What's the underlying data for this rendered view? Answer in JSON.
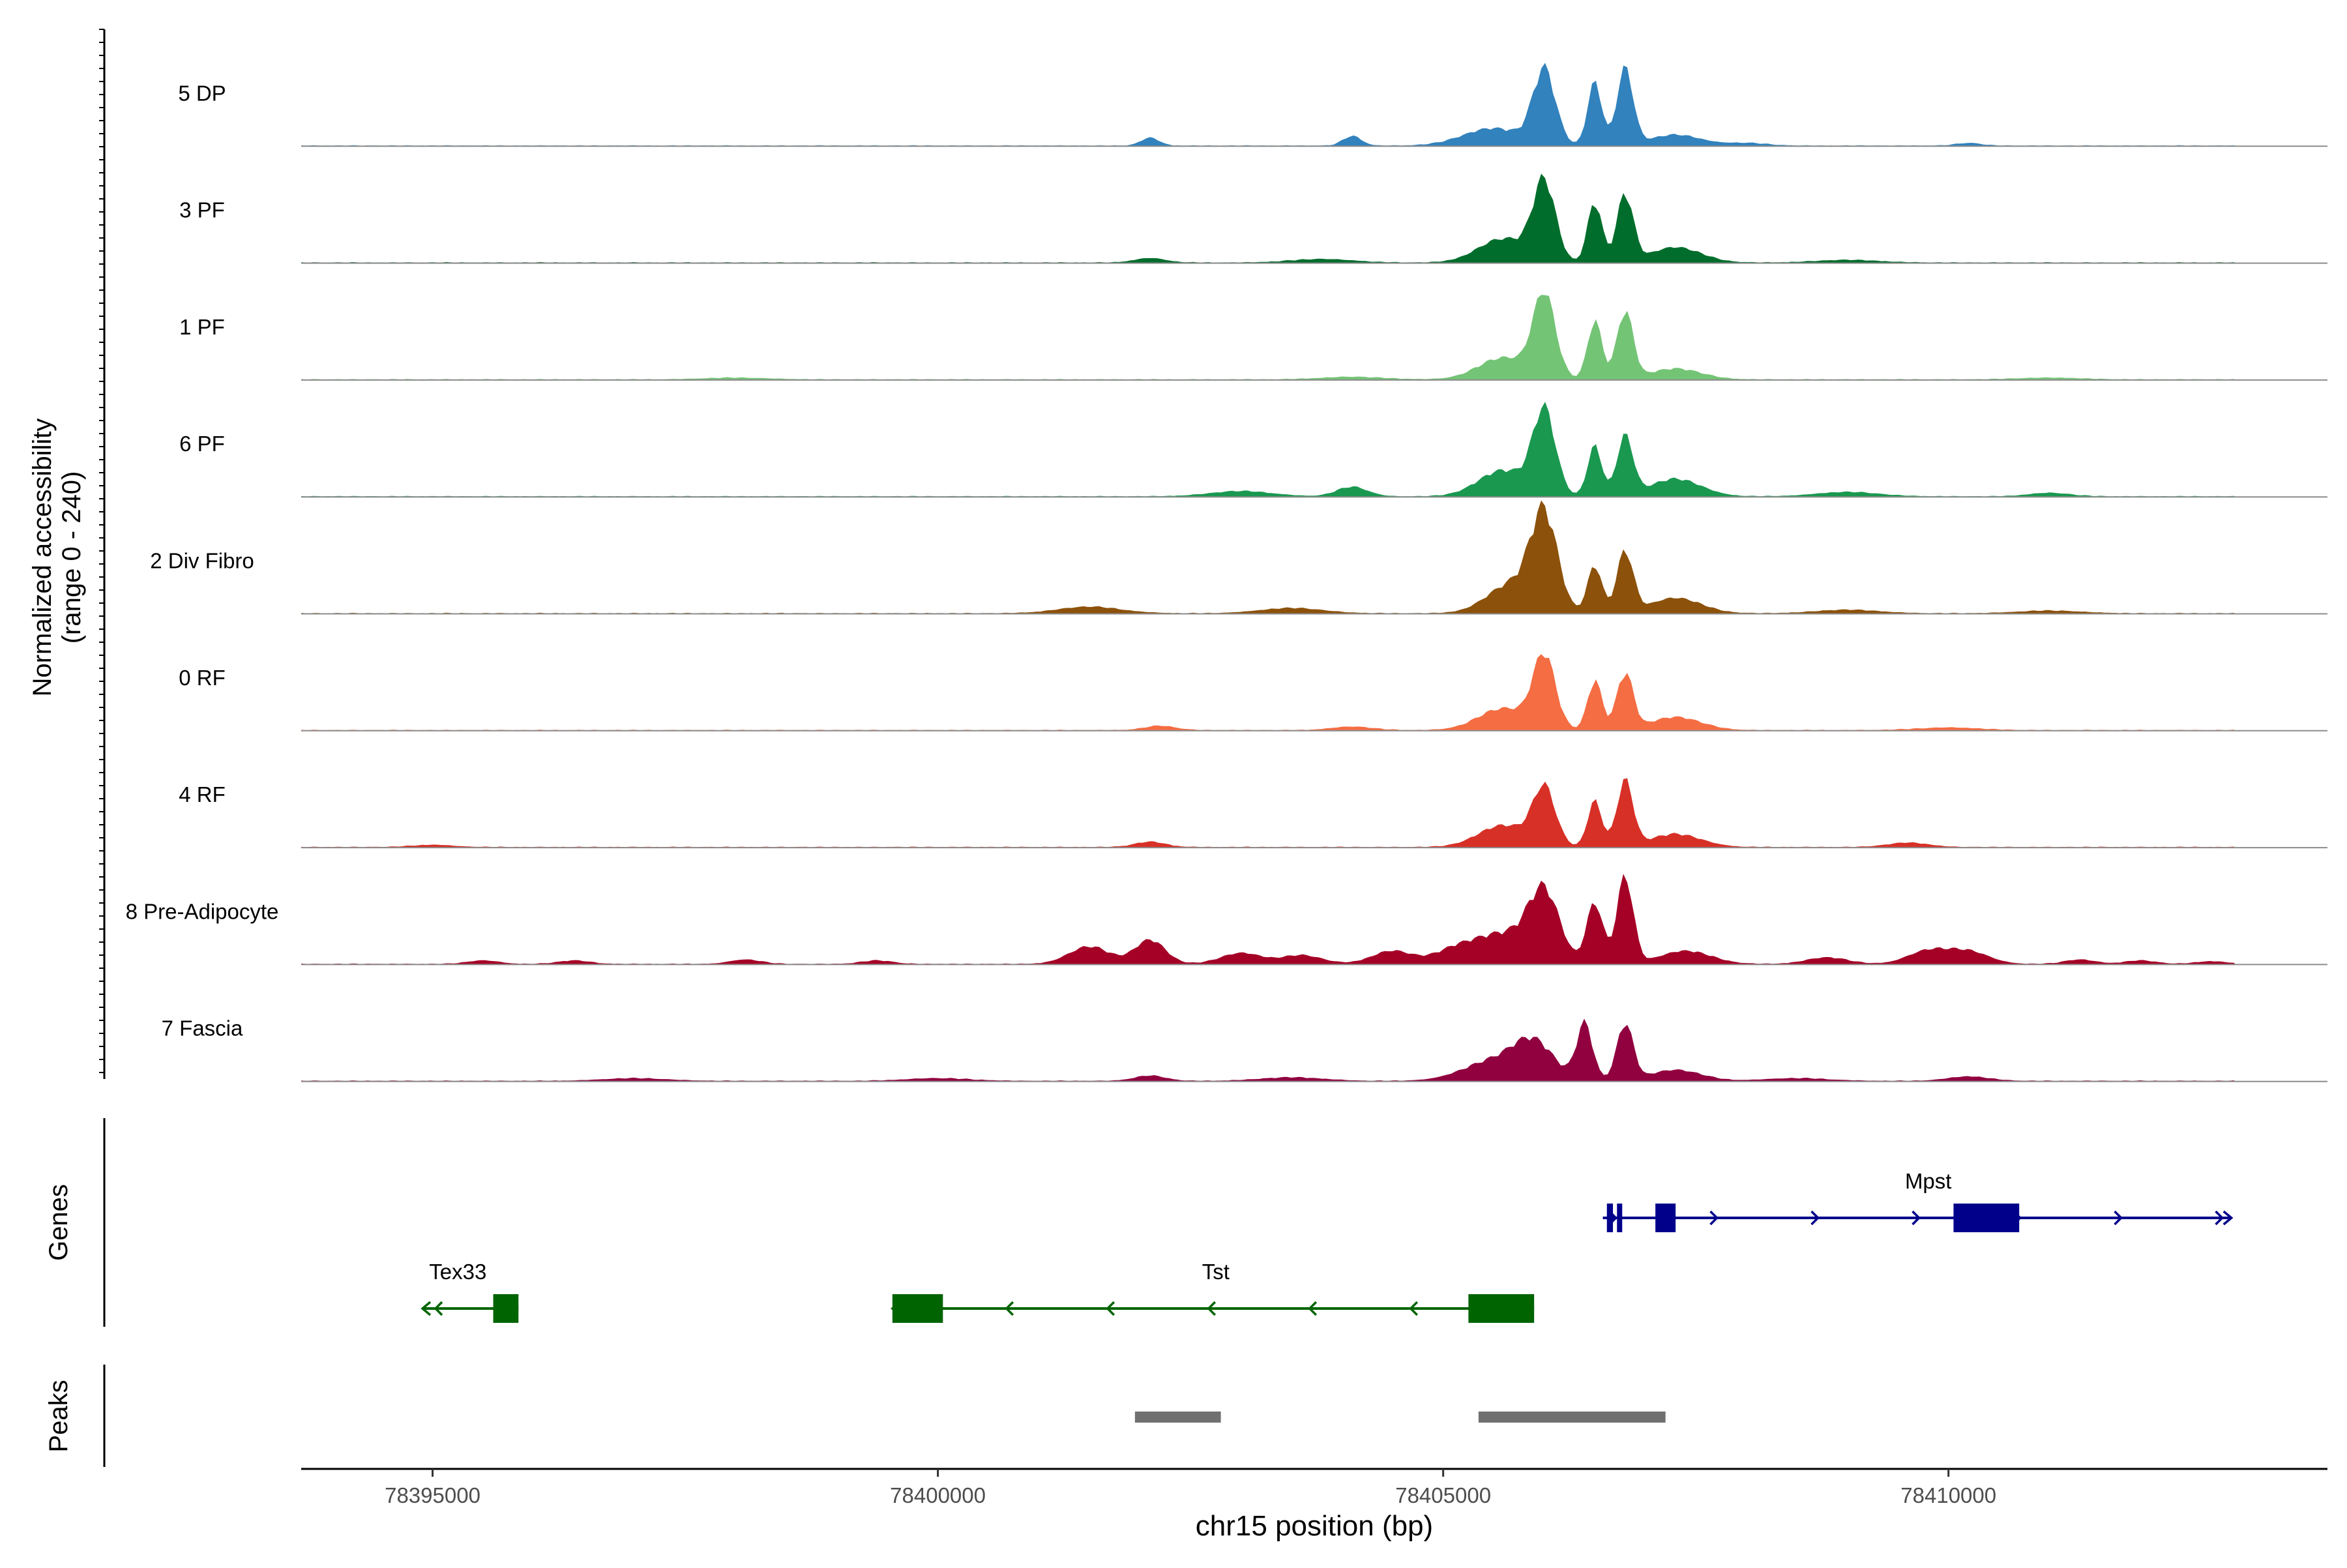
{
  "chart_data": {
    "type": "area",
    "title": "",
    "ylabel_line1": "Normalized accessibility",
    "ylabel_line2": "(range 0 - 240)",
    "xlabel": "chr15 position (bp)",
    "xlim": [
      78393700,
      78413750
    ],
    "ylim": [
      0,
      240
    ],
    "x_ticks": [
      78395000,
      78400000,
      78405000,
      78410000
    ],
    "x_tick_labels": [
      "78395000",
      "78400000",
      "78405000",
      "78410000"
    ],
    "tracks_label_genes": "Genes",
    "tracks_label_peaks": "Peaks",
    "series": [
      {
        "name": "5 DP",
        "color": "#3182BD",
        "peaks": [
          [
            78406000,
            170,
            110
          ],
          [
            78406500,
            145,
            70
          ],
          [
            78406800,
            175,
            80
          ],
          [
            78405500,
            40,
            300
          ],
          [
            78407300,
            25,
            250
          ],
          [
            78402100,
            18,
            90
          ],
          [
            78404100,
            22,
            90
          ],
          [
            78408000,
            6,
            200
          ],
          [
            78410200,
            6,
            120
          ]
        ]
      },
      {
        "name": "3 PF",
        "color": "#006D2C",
        "peaks": [
          [
            78406000,
            180,
            110
          ],
          [
            78406500,
            140,
            70
          ],
          [
            78406800,
            155,
            80
          ],
          [
            78405600,
            55,
            250
          ],
          [
            78407300,
            35,
            250
          ],
          [
            78402100,
            10,
            150
          ],
          [
            78403800,
            8,
            300
          ],
          [
            78409000,
            6,
            300
          ]
        ]
      },
      {
        "name": "1 PF",
        "color": "#74C476",
        "peaks": [
          [
            78406000,
            190,
            110
          ],
          [
            78406500,
            135,
            70
          ],
          [
            78406800,
            155,
            80
          ],
          [
            78405600,
            50,
            250
          ],
          [
            78407300,
            25,
            250
          ],
          [
            78404100,
            6,
            300
          ],
          [
            78398000,
            4,
            300
          ],
          [
            78411000,
            4,
            300
          ]
        ]
      },
      {
        "name": "6 PF",
        "color": "#1A9850",
        "peaks": [
          [
            78406000,
            190,
            110
          ],
          [
            78406500,
            115,
            70
          ],
          [
            78406800,
            135,
            80
          ],
          [
            78405600,
            60,
            250
          ],
          [
            78407300,
            40,
            250
          ],
          [
            78404100,
            22,
            150
          ],
          [
            78403000,
            12,
            300
          ],
          [
            78409000,
            10,
            300
          ],
          [
            78411000,
            8,
            200
          ]
        ]
      },
      {
        "name": "2 Div Fibro",
        "color": "#8C510A",
        "peaks": [
          [
            78406000,
            210,
            130
          ],
          [
            78406500,
            110,
            70
          ],
          [
            78406800,
            140,
            80
          ],
          [
            78405700,
            70,
            250
          ],
          [
            78407300,
            35,
            250
          ],
          [
            78401500,
            15,
            300
          ],
          [
            78403500,
            12,
            300
          ],
          [
            78409000,
            8,
            300
          ],
          [
            78411000,
            6,
            300
          ]
        ]
      },
      {
        "name": "0 RF",
        "color": "#F46D43",
        "peaks": [
          [
            78406000,
            165,
            110
          ],
          [
            78406500,
            115,
            70
          ],
          [
            78406800,
            130,
            80
          ],
          [
            78405600,
            50,
            250
          ],
          [
            78407300,
            30,
            250
          ],
          [
            78402200,
            10,
            150
          ],
          [
            78404100,
            8,
            200
          ],
          [
            78410000,
            6,
            300
          ]
        ]
      },
      {
        "name": "4 RF",
        "color": "#D73027",
        "peaks": [
          [
            78406000,
            130,
            110
          ],
          [
            78406500,
            105,
            70
          ],
          [
            78406800,
            150,
            80
          ],
          [
            78405600,
            50,
            250
          ],
          [
            78407300,
            30,
            250
          ],
          [
            78402100,
            12,
            150
          ],
          [
            78409600,
            10,
            200
          ],
          [
            78395000,
            5,
            200
          ]
        ]
      },
      {
        "name": "8 Pre-Adipocyte",
        "color": "#A50026",
        "peaks": [
          [
            78406000,
            150,
            150
          ],
          [
            78406500,
            140,
            80
          ],
          [
            78406800,
            200,
            80
          ],
          [
            78405600,
            70,
            300
          ],
          [
            78407400,
            30,
            250
          ],
          [
            78402100,
            55,
            150
          ],
          [
            78401500,
            40,
            200
          ],
          [
            78403000,
            25,
            200
          ],
          [
            78403600,
            20,
            200
          ],
          [
            78404500,
            30,
            200
          ],
          [
            78405100,
            25,
            200
          ],
          [
            78409800,
            30,
            200
          ],
          [
            78410200,
            28,
            200
          ],
          [
            78408800,
            15,
            200
          ],
          [
            78411300,
            10,
            150
          ],
          [
            78395500,
            8,
            150
          ],
          [
            78396400,
            8,
            150
          ],
          [
            78398100,
            10,
            150
          ],
          [
            78399400,
            8,
            150
          ],
          [
            78411900,
            8,
            150
          ],
          [
            78412600,
            6,
            150
          ]
        ]
      },
      {
        "name": "7 Fascia",
        "color": "#91003F",
        "peaks": [
          [
            78405900,
            80,
            200
          ],
          [
            78406400,
            130,
            80
          ],
          [
            78406800,
            130,
            80
          ],
          [
            78405500,
            45,
            300
          ],
          [
            78407300,
            25,
            250
          ],
          [
            78402100,
            12,
            150
          ],
          [
            78410200,
            10,
            200
          ],
          [
            78397000,
            6,
            300
          ],
          [
            78400000,
            6,
            300
          ],
          [
            78403500,
            8,
            300
          ],
          [
            78408500,
            6,
            300
          ]
        ]
      }
    ],
    "genes": [
      {
        "name": "Tex33",
        "strand": "-",
        "color": "#006400",
        "start": 78394900,
        "end": 78395850,
        "exons": [
          [
            78395600,
            78395850
          ]
        ],
        "label_x": 78395250,
        "row": 2
      },
      {
        "name": "Tst",
        "strand": "-",
        "color": "#006400",
        "start": 78399550,
        "end": 78405900,
        "exons": [
          [
            78399550,
            78400050
          ],
          [
            78405250,
            78405900
          ]
        ],
        "label_x": 78402750,
        "row": 2
      },
      {
        "name": "Mpst",
        "strand": "+",
        "color": "#00008B",
        "start": 78406580,
        "end": 78412800,
        "exons": [
          [
            78406620,
            78406680
          ],
          [
            78406720,
            78406760
          ],
          [
            78407100,
            78407300
          ],
          [
            78410050,
            78410700
          ]
        ],
        "label_x": 78409800,
        "row": 1
      }
    ],
    "peaks_track": [
      {
        "start": 78401950,
        "end": 78402800
      },
      {
        "start": 78405350,
        "end": 78407200
      }
    ]
  }
}
